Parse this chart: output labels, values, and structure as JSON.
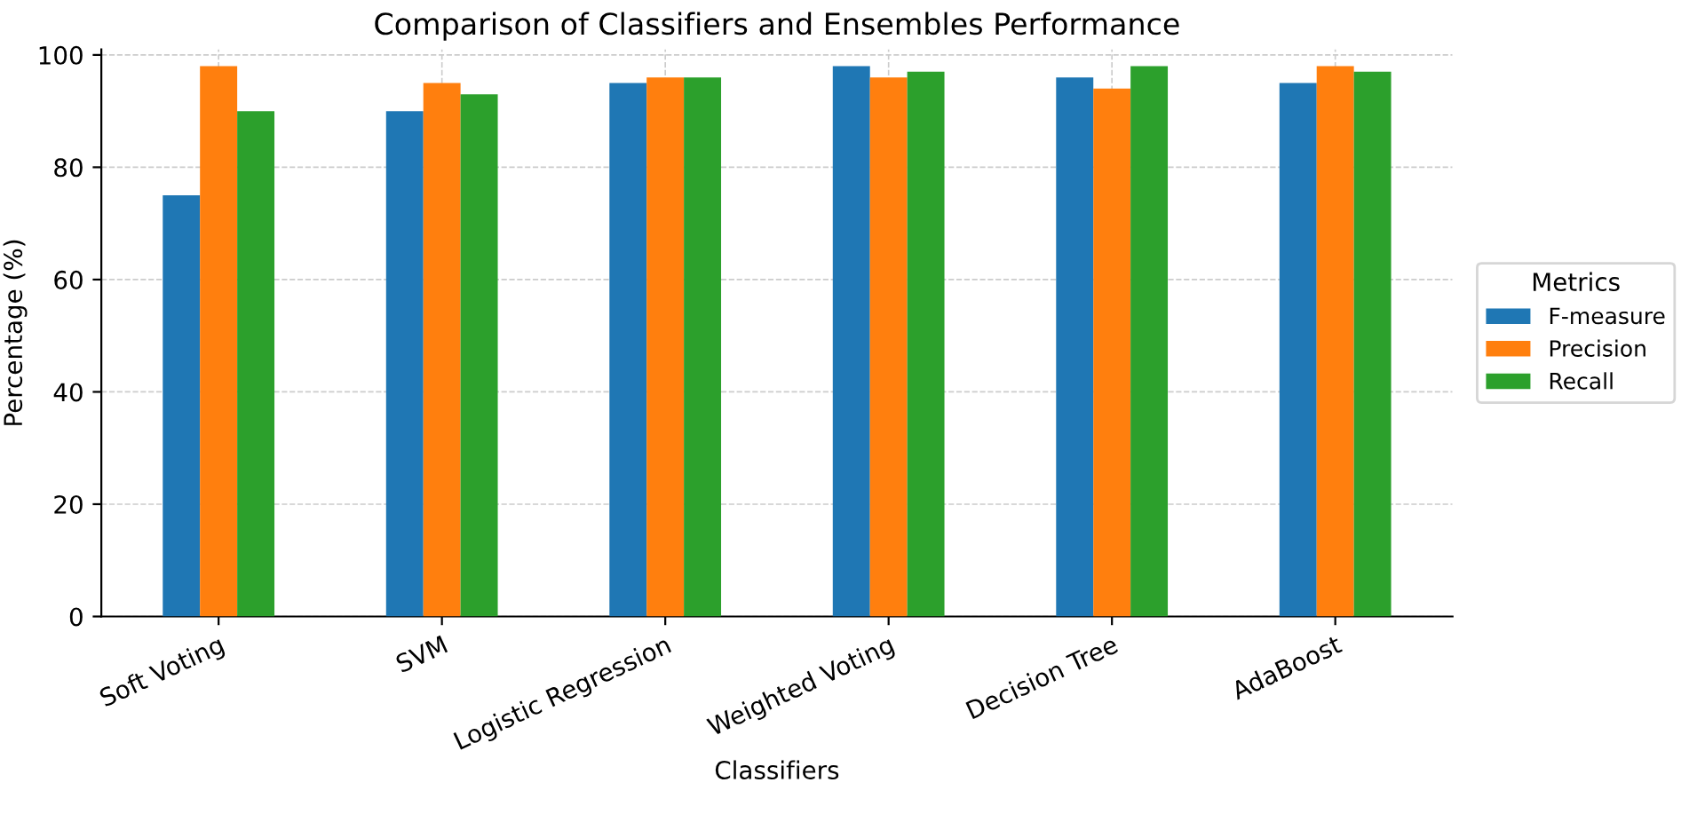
{
  "chart_data": {
    "type": "bar",
    "title": "Comparison of Classifiers and Ensembles Performance",
    "xlabel": "Classifiers",
    "ylabel": "Percentage (%)",
    "legend_title": "Metrics",
    "categories": [
      "Soft Voting",
      "SVM",
      "Logistic Regression",
      "Weighted Voting",
      "Decision Tree",
      "AdaBoost"
    ],
    "series": [
      {
        "name": "F-measure",
        "color": "#1f77b4",
        "values": [
          75,
          90,
          95,
          98,
          96,
          95
        ]
      },
      {
        "name": "Precision",
        "color": "#ff7f0e",
        "values": [
          98,
          95,
          96,
          96,
          94,
          98
        ]
      },
      {
        "name": "Recall",
        "color": "#2ca02c",
        "values": [
          90,
          93,
          96,
          97,
          98,
          97
        ]
      }
    ],
    "ylim": [
      0,
      101
    ],
    "yticks": [
      0,
      20,
      40,
      60,
      80,
      100
    ],
    "grid": true,
    "legend": "right"
  }
}
